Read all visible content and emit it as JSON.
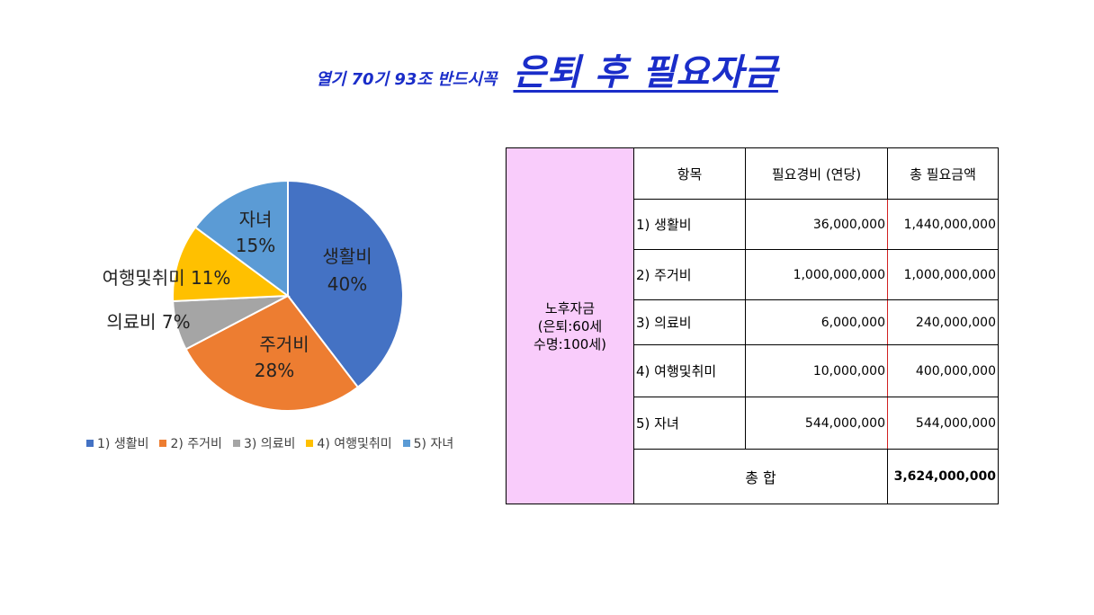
{
  "header": {
    "subtitle": "열기 70기 93조 반드시꼭",
    "title": "은퇴 후  필요자금"
  },
  "chart_data": {
    "type": "pie",
    "categories": [
      "생활비",
      "주거비",
      "의료비",
      "여행및취미",
      "자녀"
    ],
    "values": [
      40,
      28,
      7,
      11,
      15
    ],
    "unit": "%",
    "colors": [
      "#4472c4",
      "#ed7d31",
      "#a5a5a5",
      "#ffc000",
      "#5b9bd5"
    ],
    "data_labels": [
      {
        "name": "생활비",
        "pct": "40%"
      },
      {
        "name": "주거비",
        "pct": "28%"
      },
      {
        "name": "의료비",
        "pct": "7%"
      },
      {
        "name": "여행및취미",
        "pct": "11%"
      },
      {
        "name": "자녀",
        "pct": "15%"
      }
    ],
    "legend": {
      "position": "bottom",
      "entries": [
        "1) 생활비",
        "2) 주거비",
        "3) 의료비",
        "4) 여행및취미",
        "5) 자녀"
      ]
    }
  },
  "table": {
    "group_label_lines": [
      "노후자금",
      "(은퇴:60세",
      "수명:100세)"
    ],
    "headers": [
      "항목",
      "필요경비 (연당)",
      "총 필요금액"
    ],
    "rows": [
      {
        "item": "1) 생활비",
        "annual": "36,000,000",
        "total": "1,440,000,000"
      },
      {
        "item": "2) 주거비",
        "annual": "1,000,000,000",
        "total": "1,000,000,000"
      },
      {
        "item": "3) 의료비",
        "annual": "6,000,000",
        "total": "240,000,000"
      },
      {
        "item": "4) 여행및취미",
        "annual": "10,000,000",
        "total": "400,000,000"
      },
      {
        "item": "5) 자녀",
        "annual": "544,000,000",
        "total": "544,000,000"
      }
    ],
    "total_label": "총 합",
    "total_value": "3,624,000,000"
  }
}
